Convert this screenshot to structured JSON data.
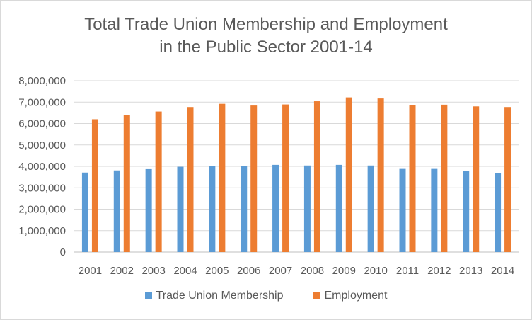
{
  "chart_data": {
    "type": "bar",
    "title": "Total Trade Union Membership and Employment\nin the Public Sector  2001-14",
    "categories": [
      "2001",
      "2002",
      "2003",
      "2004",
      "2005",
      "2006",
      "2007",
      "2008",
      "2009",
      "2010",
      "2011",
      "2012",
      "2013",
      "2014"
    ],
    "series": [
      {
        "name": "Trade Union Membership",
        "color": "#5b9bd5",
        "values": [
          3710000,
          3810000,
          3870000,
          3980000,
          4000000,
          4000000,
          4070000,
          4040000,
          4070000,
          4040000,
          3880000,
          3880000,
          3800000,
          3680000
        ]
      },
      {
        "name": "Employment",
        "color": "#ed7d31",
        "values": [
          6200000,
          6380000,
          6560000,
          6770000,
          6920000,
          6840000,
          6890000,
          7040000,
          7220000,
          7170000,
          6850000,
          6880000,
          6800000,
          6770000
        ]
      }
    ],
    "yticks": [
      "0",
      "1,000,000",
      "2,000,000",
      "3,000,000",
      "4,000,000",
      "5,000,000",
      "6,000,000",
      "7,000,000",
      "8,000,000"
    ],
    "ylim": [
      0,
      8000000
    ],
    "grid": true,
    "legend_position": "bottom"
  }
}
